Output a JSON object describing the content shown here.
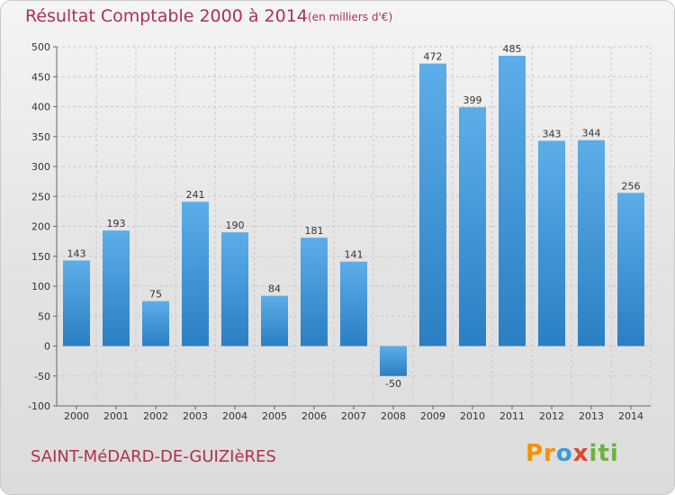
{
  "header": {
    "title": "Résultat Comptable 2000 à 2014",
    "subtitle": "(en milliers d'€)"
  },
  "footer": {
    "commune": "SAINT-MéDARD-DE-GUIZIèRES",
    "logo_text": "Proxiti"
  },
  "colors": {
    "title": "#b0304c",
    "bar_top": "#5dade8",
    "bar_bottom": "#2a7fc3"
  },
  "chart_data": {
    "type": "bar",
    "title": "Résultat Comptable 2000 à 2014",
    "subtitle": "(en milliers d'€)",
    "categories": [
      "2000",
      "2001",
      "2002",
      "2003",
      "2004",
      "2005",
      "2006",
      "2007",
      "2008",
      "2009",
      "2010",
      "2011",
      "2012",
      "2013",
      "2014"
    ],
    "values": [
      143,
      193,
      75,
      241,
      190,
      84,
      181,
      141,
      -50,
      472,
      399,
      485,
      343,
      344,
      256
    ],
    "ylim": [
      -100,
      500
    ],
    "yticks": [
      -100,
      -50,
      0,
      50,
      100,
      150,
      200,
      250,
      300,
      350,
      400,
      450,
      500
    ],
    "grid": true
  }
}
